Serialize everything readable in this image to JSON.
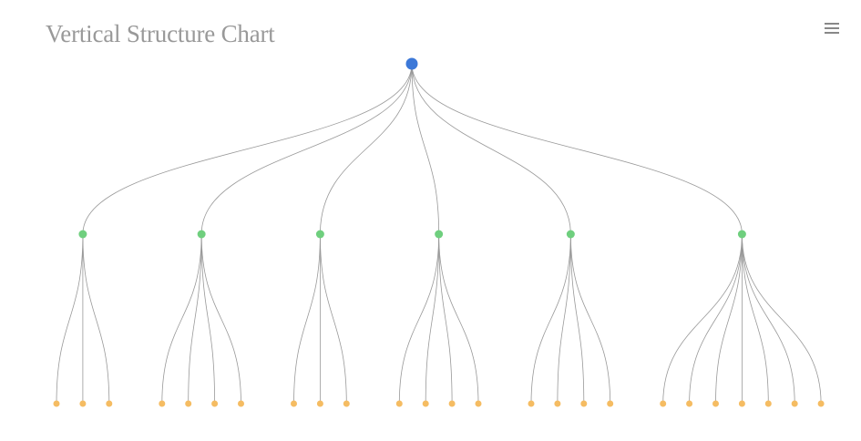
{
  "title": "Vertical Structure Chart",
  "toolbar": {
    "menu_icon": "hamburger-menu-icon"
  },
  "colors": {
    "root": "#3c78d8",
    "branch": "#6fcf7e",
    "leaf": "#f5bc62",
    "link": "#999999",
    "title": "#999999"
  },
  "tree": {
    "root_children": [
      3,
      4,
      3,
      4,
      4,
      7
    ]
  }
}
